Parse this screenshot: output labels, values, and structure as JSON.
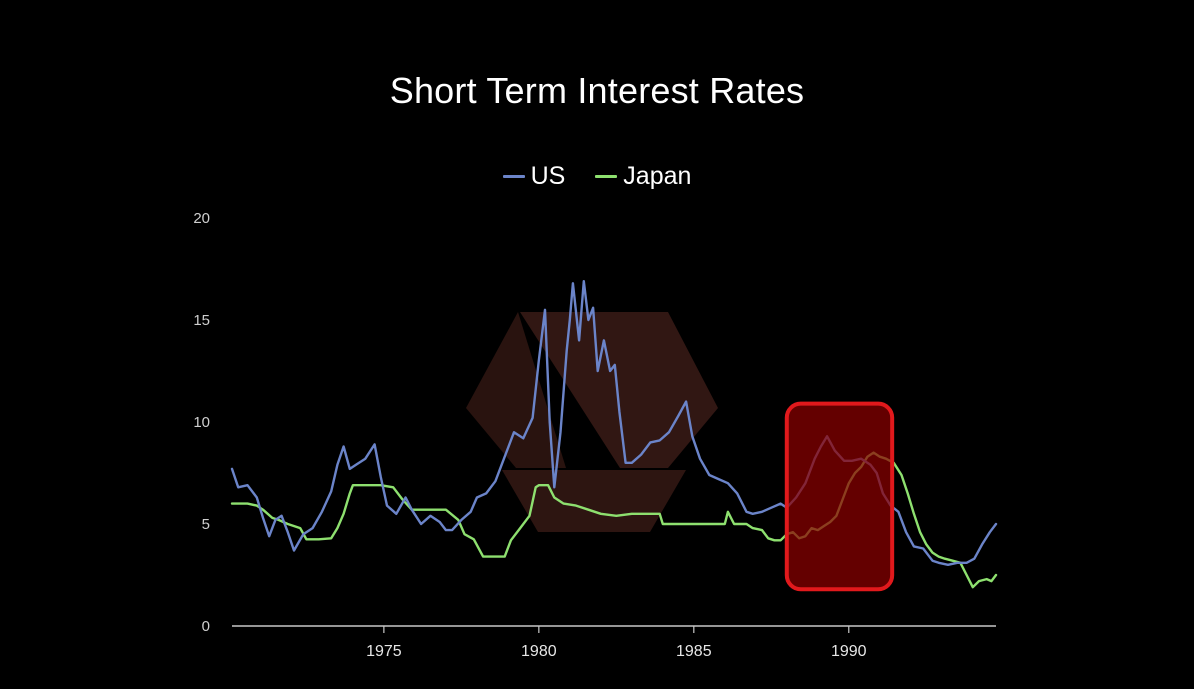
{
  "chart_data": {
    "type": "line",
    "title": "Short Term Interest Rates",
    "xlabel": "",
    "ylabel": "",
    "xlim": [
      1970.1,
      1994.75
    ],
    "ylim": [
      0,
      20
    ],
    "y_ticks": [
      "0",
      "5",
      "10",
      "15",
      "20"
    ],
    "x_ticks": [
      "1975",
      "1980",
      "1985",
      "1990"
    ],
    "grid": false,
    "legend_position": "top-center",
    "series": [
      {
        "name": "US",
        "color": "#6b84c9",
        "points": [
          [
            1970.1,
            7.7
          ],
          [
            1970.3,
            6.8
          ],
          [
            1970.6,
            6.9
          ],
          [
            1970.9,
            6.3
          ],
          [
            1971.1,
            5.3
          ],
          [
            1971.3,
            4.4
          ],
          [
            1971.5,
            5.2
          ],
          [
            1971.7,
            5.4
          ],
          [
            1971.9,
            4.6
          ],
          [
            1972.1,
            3.7
          ],
          [
            1972.4,
            4.5
          ],
          [
            1972.7,
            4.8
          ],
          [
            1973.0,
            5.6
          ],
          [
            1973.3,
            6.6
          ],
          [
            1973.5,
            7.9
          ],
          [
            1973.7,
            8.8
          ],
          [
            1973.9,
            7.7
          ],
          [
            1974.1,
            7.9
          ],
          [
            1974.4,
            8.2
          ],
          [
            1974.7,
            8.9
          ],
          [
            1974.9,
            7.3
          ],
          [
            1975.1,
            5.9
          ],
          [
            1975.4,
            5.5
          ],
          [
            1975.7,
            6.3
          ],
          [
            1975.9,
            5.7
          ],
          [
            1976.2,
            5.0
          ],
          [
            1976.5,
            5.4
          ],
          [
            1976.8,
            5.1
          ],
          [
            1977.0,
            4.7
          ],
          [
            1977.2,
            4.7
          ],
          [
            1977.5,
            5.2
          ],
          [
            1977.8,
            5.6
          ],
          [
            1978.0,
            6.3
          ],
          [
            1978.3,
            6.5
          ],
          [
            1978.6,
            7.1
          ],
          [
            1978.9,
            8.3
          ],
          [
            1979.2,
            9.5
          ],
          [
            1979.5,
            9.2
          ],
          [
            1979.8,
            10.2
          ],
          [
            1980.0,
            13.0
          ],
          [
            1980.2,
            15.5
          ],
          [
            1980.35,
            10.0
          ],
          [
            1980.5,
            6.8
          ],
          [
            1980.7,
            9.5
          ],
          [
            1980.9,
            13.5
          ],
          [
            1981.0,
            15.0
          ],
          [
            1981.1,
            16.8
          ],
          [
            1981.3,
            14.0
          ],
          [
            1981.45,
            16.9
          ],
          [
            1981.6,
            15.0
          ],
          [
            1981.75,
            15.6
          ],
          [
            1981.9,
            12.5
          ],
          [
            1982.1,
            14.0
          ],
          [
            1982.3,
            12.5
          ],
          [
            1982.45,
            12.8
          ],
          [
            1982.6,
            10.5
          ],
          [
            1982.8,
            8.0
          ],
          [
            1983.0,
            8.0
          ],
          [
            1983.3,
            8.4
          ],
          [
            1983.6,
            9.0
          ],
          [
            1983.9,
            9.1
          ],
          [
            1984.2,
            9.5
          ],
          [
            1984.5,
            10.3
          ],
          [
            1984.75,
            11.0
          ],
          [
            1984.95,
            9.3
          ],
          [
            1985.2,
            8.2
          ],
          [
            1985.5,
            7.4
          ],
          [
            1985.8,
            7.2
          ],
          [
            1986.1,
            7.0
          ],
          [
            1986.4,
            6.5
          ],
          [
            1986.7,
            5.6
          ],
          [
            1986.9,
            5.5
          ],
          [
            1987.2,
            5.6
          ],
          [
            1987.5,
            5.8
          ],
          [
            1987.8,
            6.0
          ],
          [
            1988.0,
            5.8
          ],
          [
            1988.3,
            6.3
          ],
          [
            1988.6,
            7.0
          ],
          [
            1988.9,
            8.2
          ],
          [
            1989.1,
            8.8
          ],
          [
            1989.3,
            9.3
          ],
          [
            1989.55,
            8.6
          ],
          [
            1989.85,
            8.1
          ],
          [
            1990.1,
            8.1
          ],
          [
            1990.4,
            8.2
          ],
          [
            1990.7,
            7.9
          ],
          [
            1990.9,
            7.5
          ],
          [
            1991.1,
            6.5
          ],
          [
            1991.35,
            5.9
          ],
          [
            1991.6,
            5.6
          ],
          [
            1991.85,
            4.6
          ],
          [
            1992.1,
            3.9
          ],
          [
            1992.4,
            3.8
          ],
          [
            1992.7,
            3.2
          ],
          [
            1992.9,
            3.1
          ],
          [
            1993.2,
            3.0
          ],
          [
            1993.5,
            3.1
          ],
          [
            1993.8,
            3.1
          ],
          [
            1994.05,
            3.3
          ],
          [
            1994.3,
            4.0
          ],
          [
            1994.55,
            4.6
          ],
          [
            1994.75,
            5.0
          ]
        ]
      },
      {
        "name": "Japan",
        "color": "#8ee06f",
        "points": [
          [
            1970.1,
            6.0
          ],
          [
            1970.6,
            6.0
          ],
          [
            1970.9,
            5.9
          ],
          [
            1971.1,
            5.7
          ],
          [
            1971.4,
            5.3
          ],
          [
            1971.6,
            5.2
          ],
          [
            1971.9,
            5.0
          ],
          [
            1972.3,
            4.8
          ],
          [
            1972.5,
            4.25
          ],
          [
            1972.9,
            4.25
          ],
          [
            1973.3,
            4.3
          ],
          [
            1973.5,
            4.8
          ],
          [
            1973.7,
            5.5
          ],
          [
            1973.9,
            6.5
          ],
          [
            1974.0,
            6.9
          ],
          [
            1974.9,
            6.9
          ],
          [
            1975.3,
            6.8
          ],
          [
            1975.6,
            6.2
          ],
          [
            1975.9,
            5.7
          ],
          [
            1976.2,
            5.7
          ],
          [
            1977.0,
            5.7
          ],
          [
            1977.4,
            5.2
          ],
          [
            1977.6,
            4.5
          ],
          [
            1977.9,
            4.25
          ],
          [
            1978.2,
            3.4
          ],
          [
            1978.5,
            3.4
          ],
          [
            1978.9,
            3.4
          ],
          [
            1979.1,
            4.2
          ],
          [
            1979.4,
            4.8
          ],
          [
            1979.7,
            5.4
          ],
          [
            1979.9,
            6.8
          ],
          [
            1980.0,
            6.9
          ],
          [
            1980.3,
            6.9
          ],
          [
            1980.5,
            6.3
          ],
          [
            1980.8,
            6.0
          ],
          [
            1981.2,
            5.9
          ],
          [
            1981.6,
            5.7
          ],
          [
            1982.0,
            5.5
          ],
          [
            1982.5,
            5.4
          ],
          [
            1983.0,
            5.5
          ],
          [
            1983.5,
            5.5
          ],
          [
            1983.9,
            5.5
          ],
          [
            1984.0,
            5.0
          ],
          [
            1984.5,
            5.0
          ],
          [
            1985.0,
            5.0
          ],
          [
            1985.5,
            5.0
          ],
          [
            1986.0,
            5.0
          ],
          [
            1986.1,
            5.6
          ],
          [
            1986.3,
            5.0
          ],
          [
            1986.7,
            5.0
          ],
          [
            1986.9,
            4.8
          ],
          [
            1987.2,
            4.7
          ],
          [
            1987.4,
            4.3
          ],
          [
            1987.6,
            4.2
          ],
          [
            1987.8,
            4.2
          ],
          [
            1988.0,
            4.5
          ],
          [
            1988.2,
            4.6
          ],
          [
            1988.4,
            4.3
          ],
          [
            1988.6,
            4.4
          ],
          [
            1988.8,
            4.8
          ],
          [
            1989.0,
            4.7
          ],
          [
            1989.2,
            4.9
          ],
          [
            1989.4,
            5.1
          ],
          [
            1989.6,
            5.4
          ],
          [
            1989.8,
            6.2
          ],
          [
            1990.0,
            7.0
          ],
          [
            1990.2,
            7.5
          ],
          [
            1990.4,
            7.8
          ],
          [
            1990.6,
            8.3
          ],
          [
            1990.8,
            8.5
          ],
          [
            1991.0,
            8.3
          ],
          [
            1991.2,
            8.2
          ],
          [
            1991.45,
            8.0
          ],
          [
            1991.7,
            7.4
          ],
          [
            1991.9,
            6.5
          ],
          [
            1992.1,
            5.5
          ],
          [
            1992.3,
            4.6
          ],
          [
            1992.5,
            4.0
          ],
          [
            1992.7,
            3.6
          ],
          [
            1992.9,
            3.4
          ],
          [
            1993.1,
            3.3
          ],
          [
            1993.35,
            3.2
          ],
          [
            1993.6,
            3.1
          ],
          [
            1993.8,
            2.5
          ],
          [
            1994.0,
            1.9
          ],
          [
            1994.2,
            2.2
          ],
          [
            1994.45,
            2.3
          ],
          [
            1994.6,
            2.2
          ],
          [
            1994.75,
            2.5
          ]
        ]
      }
    ],
    "annotations": [
      {
        "type": "highlight-box",
        "x_range": [
          1988.0,
          1991.4
        ],
        "y_range": [
          1.8,
          10.9
        ],
        "color": "#e1191c"
      }
    ]
  },
  "watermark_color": "#5a2a22"
}
